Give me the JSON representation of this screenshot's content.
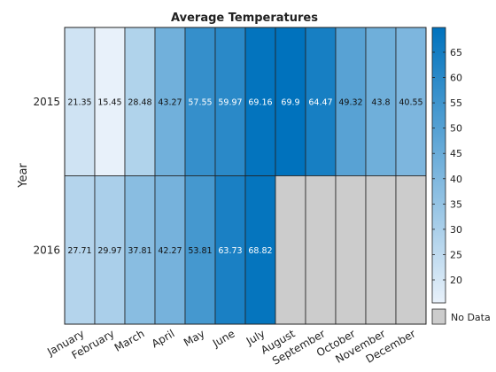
{
  "chart_data": {
    "type": "heatmap",
    "title": "Average Temperatures",
    "ylabel": "Year",
    "xlabel": "",
    "x_categories": [
      "January",
      "February",
      "March",
      "April",
      "May",
      "June",
      "July",
      "August",
      "September",
      "October",
      "November",
      "December"
    ],
    "y_categories": [
      "2015",
      "2016"
    ],
    "values": [
      [
        21.35,
        15.45,
        28.48,
        43.27,
        57.55,
        59.97,
        69.16,
        69.9,
        64.47,
        49.32,
        43.8,
        40.55
      ],
      [
        27.71,
        29.97,
        37.81,
        42.27,
        53.81,
        63.73,
        68.82,
        null,
        null,
        null,
        null,
        null
      ]
    ],
    "value_labels": [
      [
        "21.35",
        "15.45",
        "28.48",
        "43.27",
        "57.55",
        "59.97",
        "69.16",
        "69.9",
        "64.47",
        "49.32",
        "43.8",
        "40.55"
      ],
      [
        "27.71",
        "29.97",
        "37.81",
        "42.27",
        "53.81",
        "63.73",
        "68.82",
        "",
        "",
        "",
        "",
        ""
      ]
    ],
    "color_limits": [
      15.45,
      69.9
    ],
    "colorbar_ticks": [
      20,
      25,
      30,
      35,
      40,
      45,
      50,
      55,
      60,
      65
    ],
    "missing_label": "No Data",
    "colors": {
      "low": "#e8f1fa",
      "high": "#0072bd",
      "missing": "#cccccc",
      "grid": "#222222"
    }
  }
}
